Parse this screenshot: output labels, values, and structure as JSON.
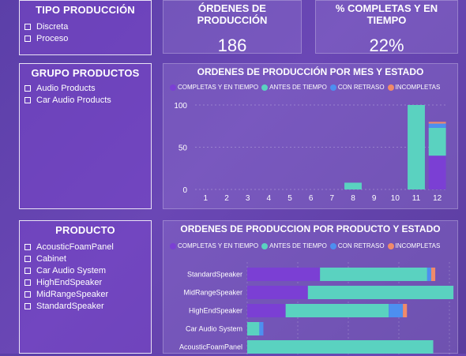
{
  "slicers": {
    "tipo": {
      "title": "TIPO PRODUCCIÓN",
      "items": [
        "Discreta",
        "Proceso"
      ]
    },
    "grupo": {
      "title": "GRUPO PRODUCTOS",
      "items": [
        "Audio Products",
        "Car Audio Products"
      ]
    },
    "producto": {
      "title": "PRODUCTO",
      "items": [
        "AcousticFoamPanel",
        "Cabinet",
        "Car Audio System",
        "HighEndSpeaker",
        "MidRangeSpeaker",
        "StandardSpeaker"
      ]
    }
  },
  "kpis": {
    "ordenes": {
      "title": "ÓRDENES DE PRODUCCIÓN",
      "value": "186"
    },
    "completas": {
      "title": "% COMPLETAS Y EN TIEMPO",
      "value": "22%"
    }
  },
  "legend": {
    "items": [
      {
        "label": "COMPLETAS Y EN TIEMPO",
        "color": "#7b3fd4"
      },
      {
        "label": "ANTES DE TIEMPO",
        "color": "#5ad2c0"
      },
      {
        "label": "CON RETRASO",
        "color": "#4d8ff0"
      },
      {
        "label": "INCOMPLETAS",
        "color": "#f08a6a"
      }
    ]
  },
  "charts": {
    "month": {
      "title": "ORDENES DE PRODUCCIÓN POR MES Y ESTADO"
    },
    "product": {
      "title": "ORDENES DE PRODUCCION POR PRODUCTO Y ESTADO"
    }
  },
  "chart_data": [
    {
      "type": "bar",
      "stacked": true,
      "orientation": "vertical",
      "title": "ORDENES DE PRODUCCIÓN POR MES Y ESTADO",
      "categories": [
        "1",
        "2",
        "3",
        "4",
        "5",
        "6",
        "7",
        "8",
        "9",
        "10",
        "11",
        "12"
      ],
      "ylim": [
        0,
        100
      ],
      "yticks": [
        0,
        50,
        100
      ],
      "series": [
        {
          "name": "COMPLETAS Y EN TIEMPO",
          "color": "#7b3fd4",
          "values": [
            0,
            0,
            0,
            0,
            0,
            0,
            0,
            0,
            0,
            0,
            0,
            40
          ]
        },
        {
          "name": "ANTES DE TIEMPO",
          "color": "#5ad2c0",
          "values": [
            0,
            0,
            0,
            0,
            0,
            0,
            0,
            8,
            0,
            0,
            100,
            33
          ]
        },
        {
          "name": "CON RETRASO",
          "color": "#4d8ff0",
          "values": [
            0,
            0,
            0,
            0,
            0,
            0,
            0,
            0,
            0,
            0,
            0,
            5
          ]
        },
        {
          "name": "INCOMPLETAS",
          "color": "#f08a6a",
          "values": [
            0,
            0,
            0,
            0,
            0,
            0,
            0,
            0,
            0,
            0,
            0,
            2
          ]
        }
      ]
    },
    {
      "type": "bar",
      "stacked": true,
      "orientation": "horizontal",
      "title": "ORDENES DE PRODUCCION POR PRODUCTO Y ESTADO",
      "categories": [
        "StandardSpeaker",
        "MidRangeSpeaker",
        "HighEndSpeaker",
        "Car Audio System",
        "AcousticFoamPanel"
      ],
      "xlim": [
        0,
        100
      ],
      "series": [
        {
          "name": "COMPLETAS Y EN TIEMPO",
          "color": "#7b3fd4",
          "values": [
            36,
            30,
            19,
            0,
            0
          ]
        },
        {
          "name": "ANTES DE TIEMPO",
          "color": "#5ad2c0",
          "values": [
            53,
            72,
            51,
            6,
            92
          ]
        },
        {
          "name": "CON RETRASO",
          "color": "#4d8ff0",
          "values": [
            2,
            0,
            7,
            2,
            0
          ]
        },
        {
          "name": "INCOMPLETAS",
          "color": "#f08a6a",
          "values": [
            2,
            0,
            2,
            0,
            0
          ]
        }
      ]
    }
  ]
}
